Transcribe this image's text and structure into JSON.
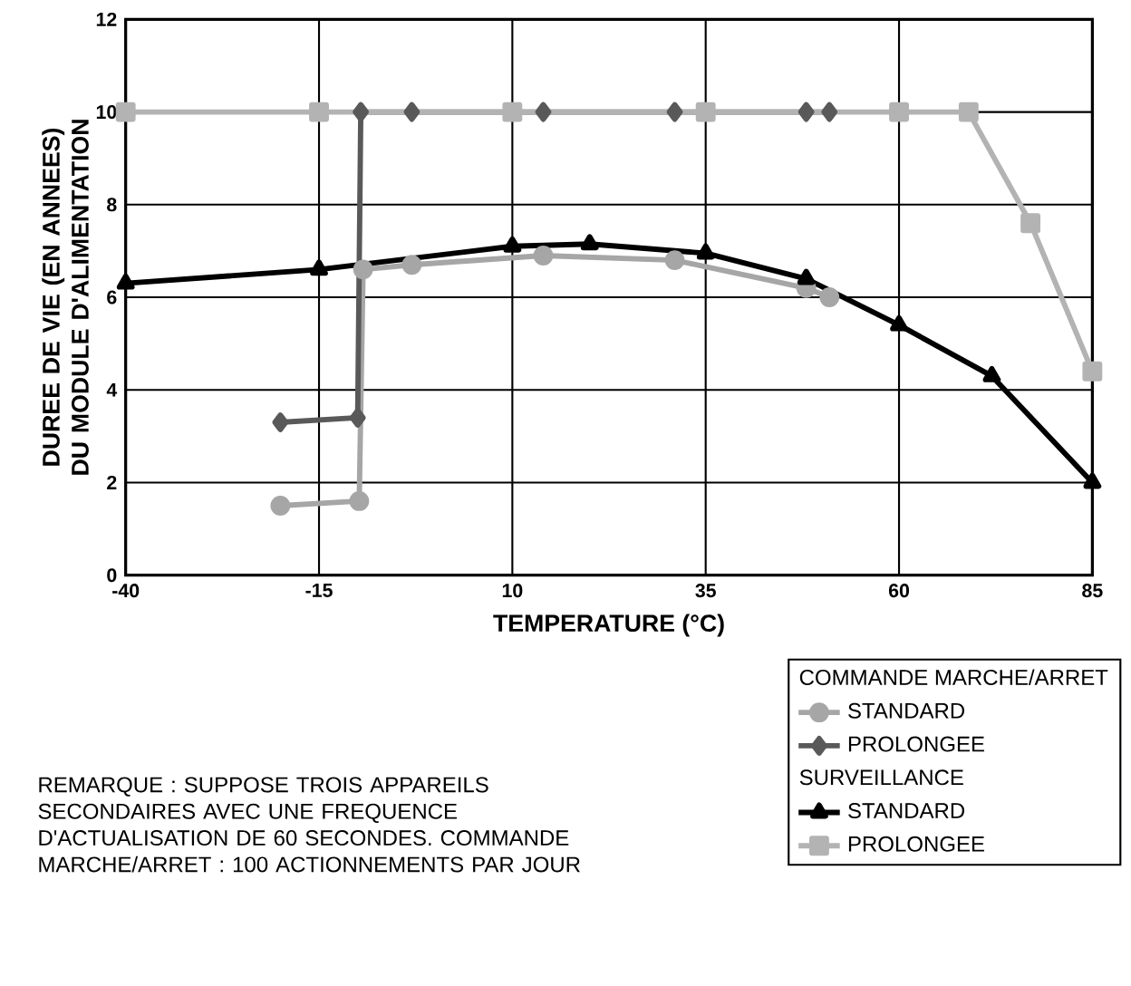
{
  "chart_data": {
    "type": "line",
    "xlabel": "TEMPERATURE (°C)",
    "ylabel": "DUREE DE VIE (EN ANNEES) DU MODULE D'ALIMENTATION",
    "xlim": [
      -40,
      85
    ],
    "xticks": [
      -40,
      -15,
      10,
      35,
      60,
      85
    ],
    "ylim": [
      0,
      12
    ],
    "yticks": [
      0,
      2,
      4,
      6,
      8,
      10,
      12
    ],
    "grid": true,
    "legend": "bottom right",
    "series": [
      {
        "name": "STANDARD",
        "color": "#a6a6a6",
        "marker": "circle",
        "x": [
          -20,
          -9.8,
          -9.3,
          -3,
          14,
          31,
          48,
          51
        ],
        "values": [
          1.5,
          1.6,
          6.6,
          6.7,
          6.9,
          6.8,
          6.2,
          6.0
        ]
      },
      {
        "name": "PROLONGEE",
        "color": "#595959",
        "marker": "diamond",
        "x": [
          -20,
          -10,
          -9.6,
          -3,
          14,
          31,
          48,
          51
        ],
        "values": [
          3.3,
          3.4,
          10,
          10,
          10,
          10,
          10,
          10
        ]
      },
      {
        "name": "STANDARD",
        "color": "#000000",
        "marker": "triangle",
        "x": [
          -40,
          -15,
          10,
          20,
          35,
          48,
          60,
          72,
          85
        ],
        "values": [
          6.3,
          6.6,
          7.1,
          7.15,
          6.95,
          6.4,
          5.4,
          4.3,
          2.0
        ]
      },
      {
        "name": "PROLONGEE",
        "color": "#b3b3b3",
        "marker": "square",
        "x": [
          -40,
          -15,
          10,
          35,
          60,
          69,
          77,
          85
        ],
        "values": [
          10,
          10,
          10,
          10,
          10,
          10,
          7.6,
          4.4
        ]
      }
    ],
    "annotations": [
      "COMMANDE MARCHE/ARRET",
      "SURVEILLANCE",
      "REMARQUE : SUPPOSE TROIS APPAREILS SECONDAIRES AVEC UNE FREQUENCE D'ACTUALISATION DE 60 SECONDES. COMMANDE MARCHE/ARRET : 100 ACTIONNEMENTS PAR JOUR"
    ]
  }
}
